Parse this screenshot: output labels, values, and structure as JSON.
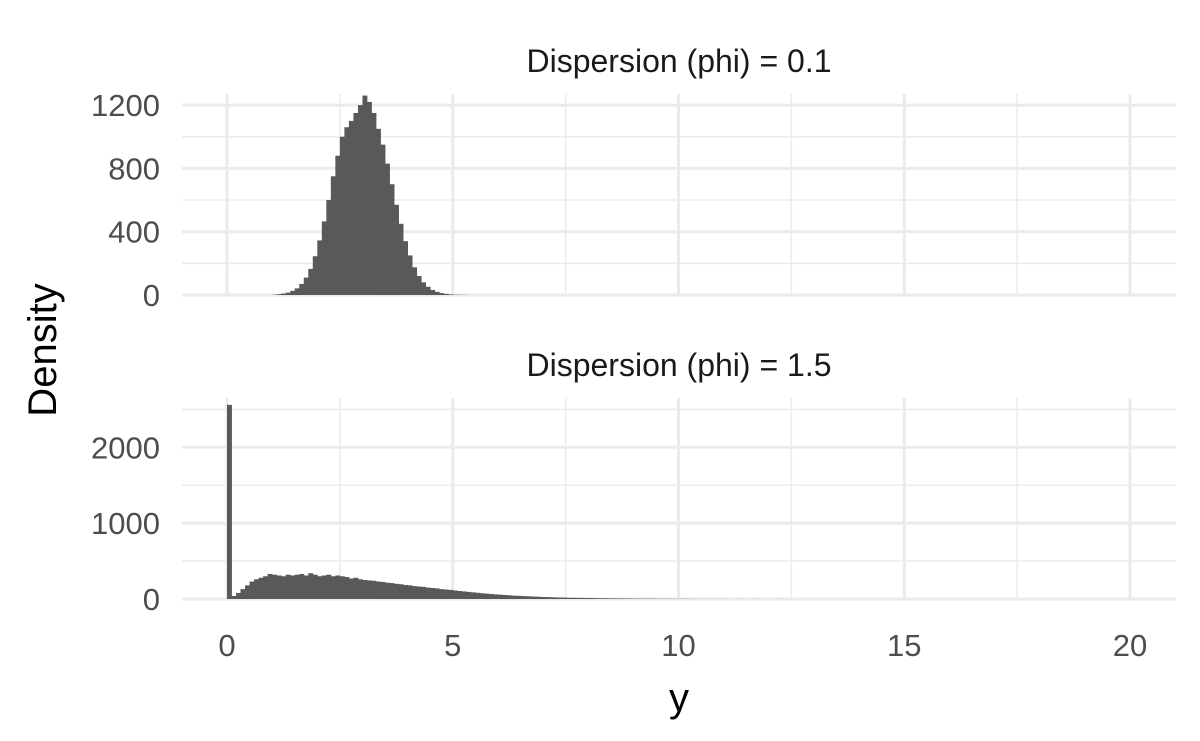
{
  "chart_data": {
    "type": "bar",
    "variant": "faceted-histogram",
    "xlabel": "y",
    "ylabel": "Density",
    "xlim": [
      0,
      20
    ],
    "x_ticks": [
      0,
      5,
      10,
      15,
      20
    ],
    "bin_width": 0.1,
    "grid": true,
    "facet_layout": "stacked-vertical",
    "bar_color": "#595959",
    "grid_color": "#ebebeb",
    "facets": [
      {
        "title": "Dispersion (phi) = 0.1",
        "ylim": [
          0,
          1270
        ],
        "y_ticks": [
          0,
          400,
          800,
          1200
        ],
        "bin_start": 1.0,
        "values": [
          2,
          5,
          9,
          15,
          26,
          42,
          70,
          110,
          165,
          245,
          345,
          465,
          600,
          750,
          880,
          1000,
          1060,
          1100,
          1150,
          1200,
          1260,
          1220,
          1150,
          1050,
          950,
          830,
          700,
          570,
          450,
          340,
          250,
          175,
          120,
          80,
          52,
          32,
          20,
          12,
          7,
          4,
          2,
          1,
          1,
          0,
          0,
          0,
          0
        ]
      },
      {
        "title": "Dispersion (phi) = 1.5",
        "ylim": [
          0,
          2650
        ],
        "y_ticks": [
          0,
          1000,
          2000
        ],
        "bin_start": 0.0,
        "values": [
          2560,
          40,
          80,
          130,
          180,
          230,
          260,
          280,
          300,
          330,
          320,
          310,
          300,
          320,
          310,
          320,
          330,
          310,
          340,
          320,
          300,
          310,
          320,
          300,
          310,
          300,
          290,
          270,
          280,
          260,
          250,
          245,
          240,
          230,
          225,
          215,
          210,
          200,
          195,
          185,
          180,
          170,
          165,
          160,
          150,
          145,
          140,
          130,
          125,
          120,
          112,
          105,
          100,
          94,
          88,
          82,
          76,
          71,
          66,
          61,
          57,
          53,
          49,
          45,
          42,
          39,
          36,
          33,
          31,
          28,
          26,
          24,
          22,
          20,
          19,
          17,
          16,
          15,
          14,
          13,
          12,
          11,
          10,
          9,
          9,
          8,
          7,
          7,
          6,
          6,
          5,
          5,
          4,
          4,
          4,
          3,
          3,
          3,
          2,
          2,
          2,
          2,
          2,
          1,
          1,
          1,
          1,
          1,
          1,
          1,
          1,
          0,
          0,
          1,
          0,
          0,
          1,
          0,
          0,
          0,
          0,
          0,
          1
        ]
      }
    ]
  }
}
